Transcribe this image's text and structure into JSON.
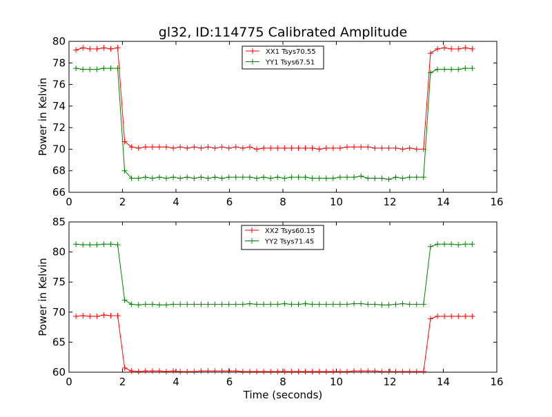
{
  "figure": {
    "title": "gl32, ID:114775 Calibrated Amplitude",
    "xlabel": "Time (seconds)"
  },
  "chart_data": [
    {
      "type": "line",
      "ylabel": "Power in Kelvin",
      "xlim": [
        0,
        16
      ],
      "ylim": [
        66,
        80
      ],
      "xticks": [
        0,
        2,
        4,
        6,
        8,
        10,
        12,
        14,
        16
      ],
      "yticks": [
        66,
        68,
        70,
        72,
        74,
        76,
        78,
        80
      ],
      "legend_position": "top-center",
      "grid": false,
      "x": [
        0.26,
        0.52,
        0.78,
        1.04,
        1.3,
        1.56,
        1.82,
        2.08,
        2.34,
        2.6,
        2.86,
        3.12,
        3.38,
        3.64,
        3.9,
        4.16,
        4.42,
        4.68,
        4.94,
        5.2,
        5.46,
        5.72,
        5.98,
        6.24,
        6.5,
        6.76,
        7.02,
        7.28,
        7.54,
        7.8,
        8.06,
        8.32,
        8.58,
        8.84,
        9.1,
        9.36,
        9.62,
        9.88,
        10.14,
        10.4,
        10.66,
        10.92,
        11.18,
        11.44,
        11.7,
        11.96,
        12.22,
        12.48,
        12.74,
        13.0,
        13.26,
        13.52,
        13.78,
        14.04,
        14.3,
        14.56,
        14.82,
        15.08
      ],
      "series": [
        {
          "name": "XX1 Tsys70.55",
          "color": "#ff0000",
          "values": [
            79.2,
            79.4,
            79.3,
            79.3,
            79.4,
            79.3,
            79.4,
            70.7,
            70.2,
            70.1,
            70.2,
            70.2,
            70.2,
            70.2,
            70.1,
            70.2,
            70.1,
            70.2,
            70.1,
            70.2,
            70.1,
            70.2,
            70.1,
            70.2,
            70.1,
            70.2,
            70.0,
            70.1,
            70.1,
            70.1,
            70.1,
            70.1,
            70.1,
            70.1,
            70.1,
            70.0,
            70.1,
            70.1,
            70.1,
            70.2,
            70.2,
            70.2,
            70.2,
            70.1,
            70.1,
            70.1,
            70.1,
            70.0,
            70.1,
            70.0,
            70.0,
            78.9,
            79.3,
            79.4,
            79.3,
            79.3,
            79.4,
            79.3
          ]
        },
        {
          "name": "YY1 Tsys67.51",
          "color": "#008000",
          "values": [
            77.5,
            77.4,
            77.4,
            77.4,
            77.5,
            77.5,
            77.5,
            68.0,
            67.3,
            67.3,
            67.4,
            67.3,
            67.4,
            67.3,
            67.4,
            67.3,
            67.4,
            67.3,
            67.4,
            67.3,
            67.4,
            67.3,
            67.4,
            67.4,
            67.4,
            67.4,
            67.3,
            67.4,
            67.3,
            67.4,
            67.3,
            67.4,
            67.4,
            67.4,
            67.3,
            67.3,
            67.3,
            67.3,
            67.4,
            67.4,
            67.4,
            67.5,
            67.3,
            67.3,
            67.3,
            67.2,
            67.4,
            67.3,
            67.4,
            67.4,
            67.4,
            77.1,
            77.4,
            77.4,
            77.4,
            77.4,
            77.5,
            77.5
          ]
        }
      ]
    },
    {
      "type": "line",
      "ylabel": "Power in Kelvin",
      "xlabel": "Time (seconds)",
      "xlim": [
        0,
        16
      ],
      "ylim": [
        60,
        85
      ],
      "xticks": [
        0,
        2,
        4,
        6,
        8,
        10,
        12,
        14,
        16
      ],
      "yticks": [
        60,
        65,
        70,
        75,
        80,
        85
      ],
      "legend_position": "top-center",
      "grid": false,
      "x": [
        0.26,
        0.52,
        0.78,
        1.04,
        1.3,
        1.56,
        1.82,
        2.08,
        2.34,
        2.6,
        2.86,
        3.12,
        3.38,
        3.64,
        3.9,
        4.16,
        4.42,
        4.68,
        4.94,
        5.2,
        5.46,
        5.72,
        5.98,
        6.24,
        6.5,
        6.76,
        7.02,
        7.28,
        7.54,
        7.8,
        8.06,
        8.32,
        8.58,
        8.84,
        9.1,
        9.36,
        9.62,
        9.88,
        10.14,
        10.4,
        10.66,
        10.92,
        11.18,
        11.44,
        11.7,
        11.96,
        12.22,
        12.48,
        12.74,
        13.0,
        13.26,
        13.52,
        13.78,
        14.04,
        14.3,
        14.56,
        14.82,
        15.08
      ],
      "series": [
        {
          "name": "XX2 Tsys60.15",
          "color": "#ff0000",
          "values": [
            69.3,
            69.4,
            69.3,
            69.3,
            69.5,
            69.4,
            69.4,
            60.7,
            60.2,
            60.1,
            60.2,
            60.2,
            60.2,
            60.1,
            60.2,
            60.1,
            60.1,
            60.1,
            60.2,
            60.2,
            60.2,
            60.2,
            60.2,
            60.2,
            60.1,
            60.1,
            60.1,
            60.1,
            60.1,
            60.1,
            60.1,
            60.1,
            60.1,
            60.1,
            60.1,
            60.1,
            60.1,
            60.1,
            60.1,
            60.1,
            60.2,
            60.2,
            60.2,
            60.2,
            60.1,
            60.1,
            60.1,
            60.1,
            60.1,
            60.1,
            60.1,
            68.9,
            69.3,
            69.3,
            69.3,
            69.3,
            69.3,
            69.3
          ]
        },
        {
          "name": "YY2 Tsys71.45",
          "color": "#008000",
          "values": [
            81.3,
            81.2,
            81.2,
            81.2,
            81.3,
            81.3,
            81.2,
            72.0,
            71.3,
            71.2,
            71.3,
            71.3,
            71.2,
            71.2,
            71.3,
            71.3,
            71.3,
            71.3,
            71.3,
            71.3,
            71.3,
            71.3,
            71.3,
            71.3,
            71.3,
            71.4,
            71.3,
            71.3,
            71.3,
            71.3,
            71.4,
            71.3,
            71.3,
            71.4,
            71.3,
            71.3,
            71.3,
            71.3,
            71.3,
            71.3,
            71.4,
            71.4,
            71.3,
            71.3,
            71.2,
            71.2,
            71.3,
            71.4,
            71.3,
            71.3,
            71.3,
            80.9,
            81.3,
            81.3,
            81.3,
            81.2,
            81.3,
            81.3
          ]
        }
      ]
    }
  ]
}
